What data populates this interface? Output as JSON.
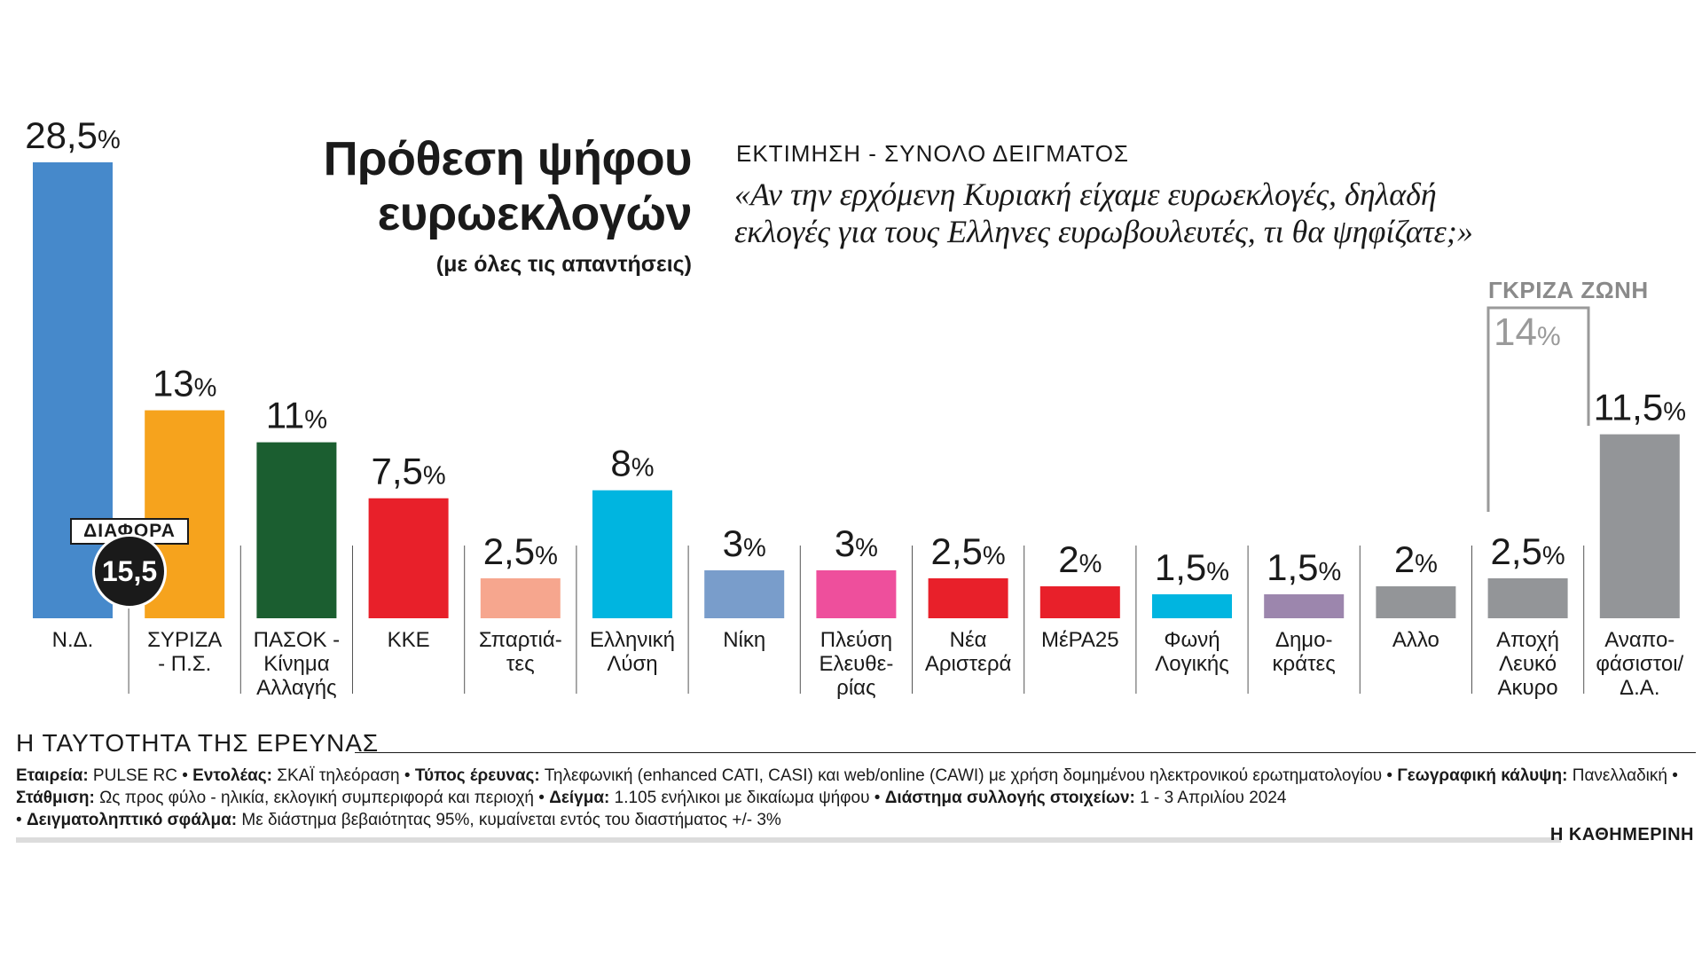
{
  "title": {
    "main": "Πρόθεση ψήφου ευρωεκλογών",
    "subtitle": "(με όλες τις απαντήσεις)"
  },
  "estimate_label": "ΕΚΤΙΜΗΣΗ - ΣΥΝΟΛΟ ΔΕΙΓΜΑΤΟΣ",
  "question": "«Αν την ερχόμενη Κυριακή είχαμε ευρωεκλογές, δηλαδή εκλογές για τους Ελληνες ευρωβουλευτές, τι θα ψηφίζατε;»",
  "difference": {
    "label": "ΔΙΑΦΟΡΑ",
    "value": "15,5"
  },
  "grey_zone": {
    "label": "ΓΚΡΙΖΑ ΖΩΝΗ",
    "value": "14",
    "unit": "%"
  },
  "chart_data": {
    "type": "bar",
    "title": "Πρόθεση ψήφου ευρωεκλογών",
    "ylabel": "%",
    "ylim": [
      0,
      28.5
    ],
    "categories": [
      "Ν.Δ.",
      "ΣΥΡΙΖΑ - Π.Σ.",
      "ΠΑΣΟΚ - Κίνημα Αλλαγής",
      "ΚΚΕ",
      "Σπαρτιάτες",
      "Ελληνική Λύση",
      "Νίκη",
      "Πλεύση Ελευθερίας",
      "Νέα Αριστερά",
      "ΜέΡΑ25",
      "Φωνή Λογικής",
      "Δημοκράτες",
      "Αλλο",
      "Αποχή Λευκό Ακυρο",
      "Αναποφάσιστοι/ Δ.Α."
    ],
    "label_lines": [
      [
        "Ν.Δ."
      ],
      [
        "ΣΥΡΙΖΑ",
        "- Π.Σ."
      ],
      [
        "ΠΑΣΟΚ -",
        "Κίνημα",
        "Αλλαγής"
      ],
      [
        "ΚΚΕ"
      ],
      [
        "Σπαρτιά-",
        "τες"
      ],
      [
        "Ελληνική",
        "Λύση"
      ],
      [
        "Νίκη"
      ],
      [
        "Πλεύση",
        "Ελευθε-",
        "ρίας"
      ],
      [
        "Νέα",
        "Αριστερά"
      ],
      [
        "ΜέΡΑ25"
      ],
      [
        "Φωνή",
        "Λογικής"
      ],
      [
        "Δημο-",
        "κράτες"
      ],
      [
        "Αλλο"
      ],
      [
        "Αποχή",
        "Λευκό",
        "Ακυρο"
      ],
      [
        "Αναπο-",
        "φάσιστοι/",
        "Δ.Α."
      ]
    ],
    "values": [
      28.5,
      13,
      11,
      7.5,
      2.5,
      8,
      3,
      3,
      2.5,
      2,
      1.5,
      1.5,
      2,
      2.5,
      11.5
    ],
    "value_labels": [
      "28,5",
      "13",
      "11",
      "7,5",
      "2,5",
      "8",
      "3",
      "3",
      "2,5",
      "2",
      "1,5",
      "1,5",
      "2",
      "2,5",
      "11,5"
    ],
    "unit": "%",
    "colors": [
      "#4689cb",
      "#f6a31d",
      "#1b5e30",
      "#e8202a",
      "#f6a68e",
      "#00b5e0",
      "#799dcb",
      "#ee4f9c",
      "#e8202a",
      "#e8202a",
      "#00b5e0",
      "#9c86ad",
      "#939598",
      "#939598",
      "#939598"
    ]
  },
  "survey": {
    "heading": "Η ΤΑΥΤΟΤΗΤΑ ΤΗΣ ΕΡΕΥΝΑΣ",
    "company_label": "Εταιρεία:",
    "company": "PULSE RC",
    "client_label": "Εντολέας:",
    "client": "ΣΚΑΪ τηλεόραση",
    "type_label": "Τύπος έρευνας:",
    "type": "Τηλεφωνική (enhanced CATI, CASI) και web/online (CAWI) με χρήση δομημένου ηλεκτρονικού ερωτηματολογίου",
    "coverage_label": "Γεωγραφική κάλυψη:",
    "coverage": "Πανελλαδική",
    "weighting_label": "Στάθμιση:",
    "weighting": "Ως προς φύλο - ηλικία, εκλογική συμπεριφορά και περιοχή",
    "sample_label": "Δείγμα:",
    "sample": "1.105 ενήλικοι με δικαίωμα ψήφου",
    "period_label": "Διάστημα συλλογής στοιχείων:",
    "period": "1 - 3 Απριλίου 2024",
    "error_label": "Δειγματοληπτικό σφάλμα:",
    "error": "Με διάστημα βεβαιότητας 95%, κυμαίνεται εντός του διαστήματος +/- 3%"
  },
  "brand": "Η ΚΑΘΗΜΕΡΙΝΗ"
}
